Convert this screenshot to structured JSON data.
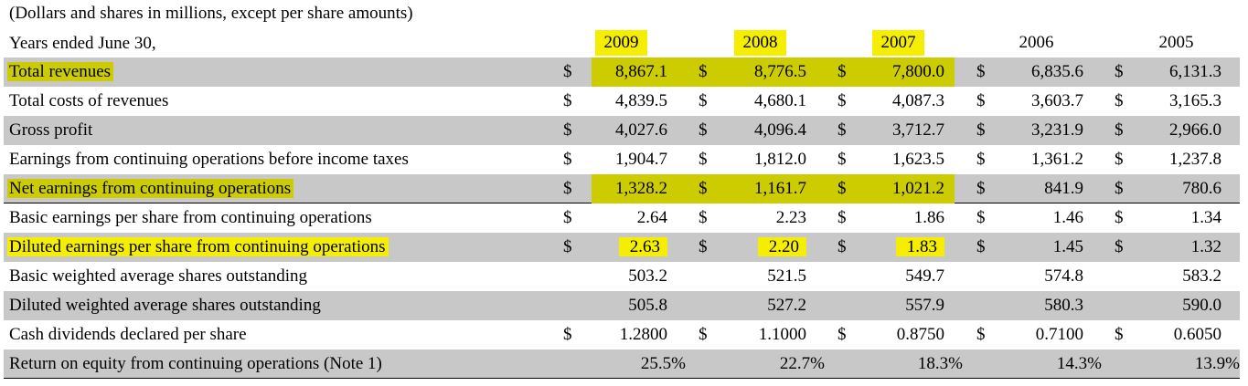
{
  "caption": "(Dollars and shares in millions, except per share amounts)",
  "header_label": "Years ended June 30,",
  "years": [
    "2009",
    "2008",
    "2007",
    "2006",
    "2005"
  ],
  "highlighted_years": [
    "2009",
    "2008",
    "2007"
  ],
  "colors": {
    "row_shade": "#c8c8c8",
    "highlight": "#cdcc00",
    "header_highlight": "#f5ee00"
  },
  "rows": [
    {
      "label": "Total revenues",
      "dollar": true,
      "values": [
        "8,867.1",
        "8,776.5",
        "7,800.0",
        "6,835.6",
        "6,131.3"
      ],
      "label_highlight": true
    },
    {
      "label": "Total costs of revenues",
      "dollar": true,
      "values": [
        "4,839.5",
        "4,680.1",
        "4,087.3",
        "3,603.7",
        "3,165.3"
      ]
    },
    {
      "label": "Gross profit",
      "dollar": true,
      "values": [
        "4,027.6",
        "4,096.4",
        "3,712.7",
        "3,231.9",
        "2,966.0"
      ]
    },
    {
      "label": "Earnings from continuing operations before income taxes",
      "dollar": true,
      "values": [
        "1,904.7",
        "1,812.0",
        "1,623.5",
        "1,361.2",
        "1,237.8"
      ]
    },
    {
      "label": "Net earnings from continuing operations",
      "dollar": true,
      "values": [
        "1,328.2",
        "1,161.7",
        "1,021.2",
        "841.9",
        "780.6"
      ],
      "label_highlight": true
    },
    {
      "label": "Basic earnings per share from continuing operations",
      "dollar": true,
      "values": [
        "2.64",
        "2.23",
        "1.86",
        "1.46",
        "1.34"
      ]
    },
    {
      "label": "Diluted earnings per share from continuing operations",
      "dollar": true,
      "values": [
        "2.63",
        "2.20",
        "1.83",
        "1.45",
        "1.32"
      ],
      "label_highlight": true
    },
    {
      "label": "Basic weighted average shares outstanding",
      "dollar": false,
      "values": [
        "503.2",
        "521.5",
        "549.7",
        "574.8",
        "583.2"
      ]
    },
    {
      "label": "Diluted weighted average shares outstanding",
      "dollar": false,
      "values": [
        "505.8",
        "527.2",
        "557.9",
        "580.3",
        "590.0"
      ]
    },
    {
      "label": "Cash dividends declared per share",
      "dollar": true,
      "values": [
        "1.2800",
        "1.1000",
        "0.8750",
        "0.7100",
        "0.6050"
      ]
    },
    {
      "label": "Return on equity from continuing operations (Note 1)",
      "dollar": false,
      "values": [
        "25.5%",
        "22.7%",
        "18.3%",
        "14.3%",
        "13.9%"
      ]
    }
  ]
}
